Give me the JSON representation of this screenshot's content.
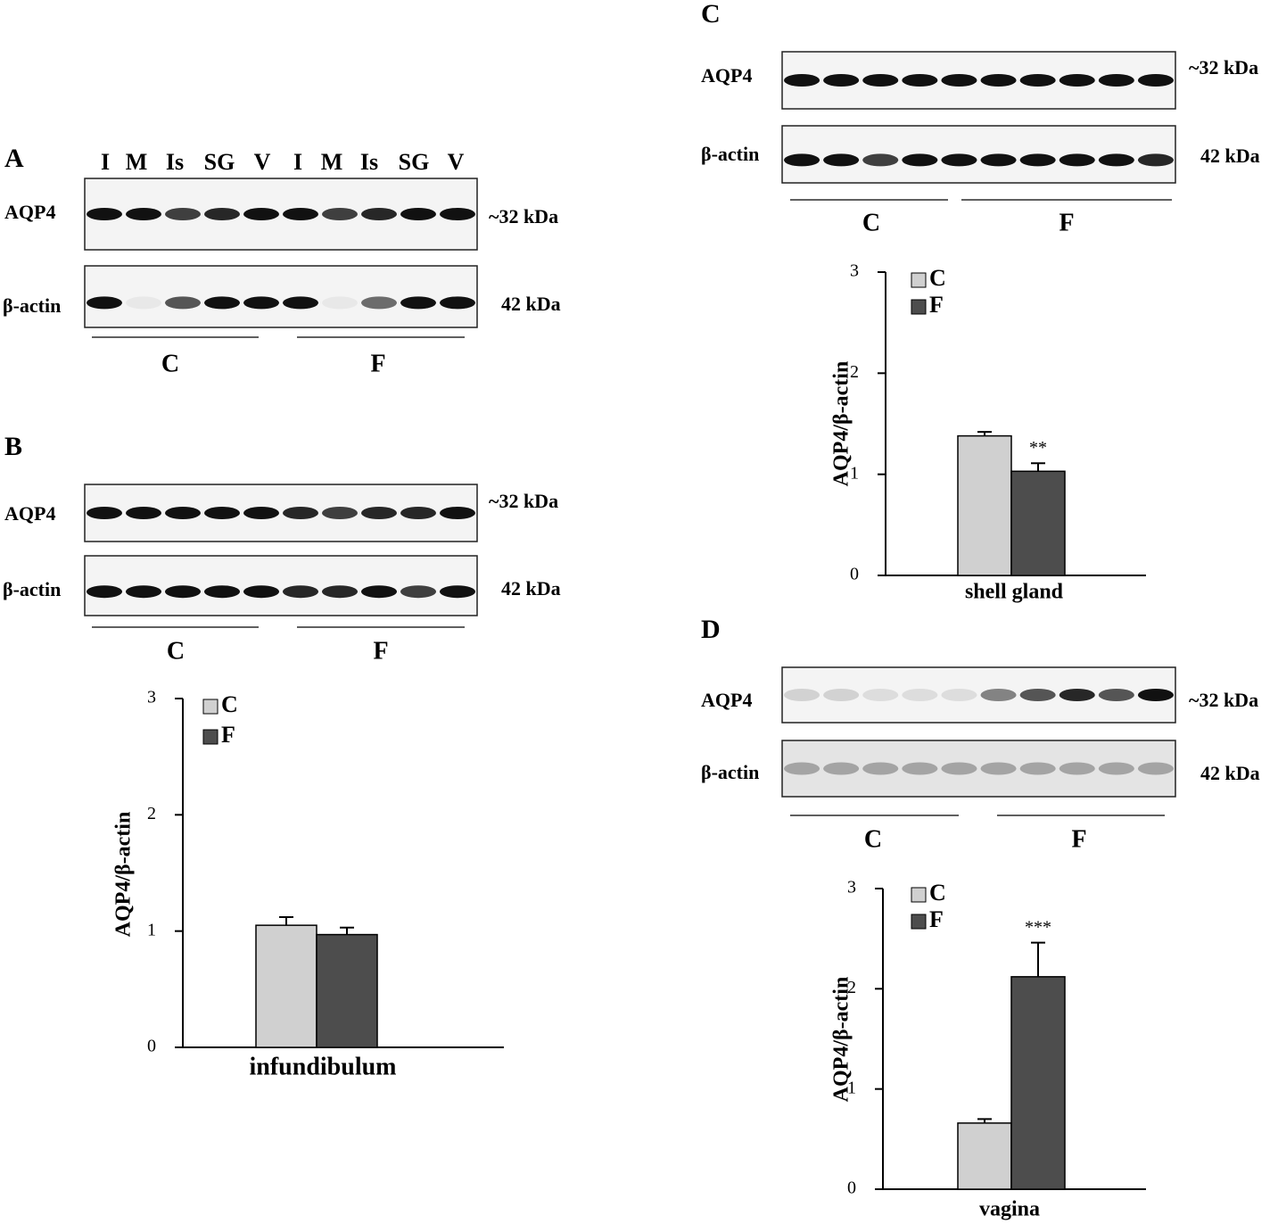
{
  "panels": {
    "A": {
      "letter": "A",
      "lanes": [
        "I",
        "M",
        "Is",
        "SG",
        "V",
        "I",
        "M",
        "Is",
        "SG",
        "V"
      ],
      "rows": [
        "AQP4",
        "β-actin"
      ],
      "sizes": [
        "~32 kDa",
        "42 kDa"
      ],
      "groups": [
        "C",
        "F"
      ]
    },
    "B": {
      "letter": "B",
      "rows": [
        "AQP4",
        "β-actin"
      ],
      "sizes": [
        "~32 kDa",
        "42 kDa"
      ],
      "groups": [
        "C",
        "F"
      ]
    },
    "C": {
      "letter": "C",
      "rows": [
        "AQP4",
        "β-actin"
      ],
      "sizes": [
        "~32 kDa",
        "42 kDa"
      ],
      "groups": [
        "C",
        "F"
      ]
    },
    "D": {
      "letter": "D",
      "rows": [
        "AQP4",
        "β-actin"
      ],
      "sizes": [
        "~32 kDa",
        "42 kDa"
      ],
      "groups": [
        "C",
        "F"
      ]
    }
  },
  "chart_data": [
    {
      "type": "bar",
      "y_label": "AQP4/β-actin",
      "categories": [
        "infundibulum"
      ],
      "series": [
        {
          "name": "C",
          "color": "#d0d0d0",
          "values": [
            1.05
          ],
          "errors": [
            0.07
          ]
        },
        {
          "name": "F",
          "color": "#4d4d4d",
          "values": [
            0.97
          ],
          "errors": [
            0.06
          ]
        }
      ],
      "ylim": [
        0,
        3
      ],
      "yticks": [
        0,
        1,
        2,
        3
      ],
      "legend": "upper-left"
    },
    {
      "type": "bar",
      "y_label": "AQP4/β-actin",
      "categories": [
        "shell gland"
      ],
      "series": [
        {
          "name": "C",
          "color": "#d0d0d0",
          "values": [
            1.38
          ],
          "errors": [
            0.04
          ]
        },
        {
          "name": "F",
          "color": "#4d4d4d",
          "values": [
            1.03
          ],
          "errors": [
            0.08
          ],
          "annotation": "**"
        }
      ],
      "ylim": [
        0,
        3
      ],
      "yticks": [
        0,
        1,
        2,
        3
      ],
      "legend": "upper-left"
    },
    {
      "type": "bar",
      "y_label": "AQP4/β-actin",
      "categories": [
        "vagina"
      ],
      "series": [
        {
          "name": "C",
          "color": "#d0d0d0",
          "values": [
            0.66
          ],
          "errors": [
            0.04
          ]
        },
        {
          "name": "F",
          "color": "#4d4d4d",
          "values": [
            2.12
          ],
          "errors": [
            0.34
          ],
          "annotation": "***"
        }
      ],
      "ylim": [
        0,
        3
      ],
      "yticks": [
        0,
        1,
        2,
        3
      ],
      "legend": "upper-left"
    }
  ]
}
